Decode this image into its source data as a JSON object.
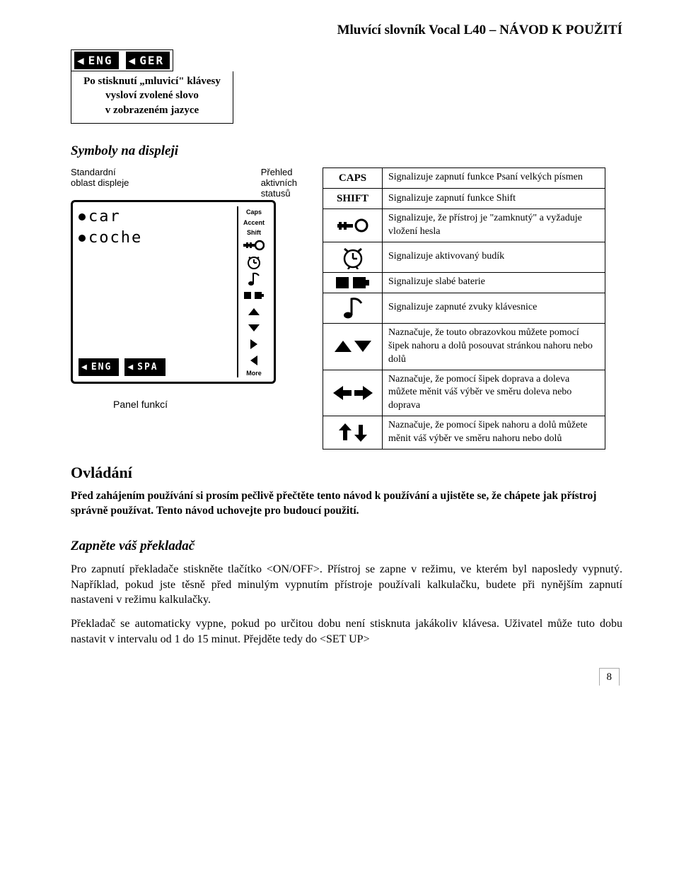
{
  "header": "Mluvící slovník Vocal L40 – NÁVOD K POUŽITÍ",
  "engger": {
    "left": "ENG",
    "right": "GER"
  },
  "caption_box": {
    "l1": "Po stisknutí „mluvicí\" klávesy",
    "l2": "vysloví zvolené slovo",
    "l3": "v zobrazeném jazyce"
  },
  "section_symbols_title": "Symboly na displeji",
  "diagram": {
    "label_std_l1": "Standardní",
    "label_std_l2": "oblast displeje",
    "label_stat_l1": "Přehled",
    "label_stat_l2": "aktivních",
    "label_stat_l3": "statusů",
    "line1": "car",
    "line2": "coche",
    "lang_left": "ENG",
    "lang_right": "SPA",
    "status_labels": {
      "caps": "Caps",
      "accent": "Accent",
      "shift": "Shift",
      "more": "More"
    },
    "panel_caption": "Panel funkcí"
  },
  "symbols": [
    {
      "label": "CAPS",
      "type": "text",
      "desc": "Signalizuje zapnutí funkce Psaní velkých písmen"
    },
    {
      "label": "SHIFT",
      "type": "text",
      "desc": "Signalizuje zapnutí funkce Shift"
    },
    {
      "type": "key",
      "desc": "Signalizuje, že přístroj je \"zamknutý\" a vyžaduje vložení hesla"
    },
    {
      "type": "clock",
      "desc": "Signalizuje aktivovaný budík"
    },
    {
      "type": "battery",
      "desc": "Signalizuje slabé baterie"
    },
    {
      "type": "note",
      "desc": "Signalizuje zapnuté zvuky klávesnice"
    },
    {
      "type": "updown-tri",
      "desc": "Naznačuje, že touto obrazovkou můžete pomocí šipek nahoru a dolů posouvat stránkou nahoru nebo dolů"
    },
    {
      "type": "leftright",
      "desc": "Naznačuje, že pomocí šipek doprava a doleva můžete měnit váš výběr ve směru doleva nebo doprava"
    },
    {
      "type": "updown-arrow",
      "desc": "Naznačuje, že pomocí šipek nahoru a dolů můžete měnit váš výběr ve směru nahoru nebo dolů"
    }
  ],
  "section_control_title": "Ovládání",
  "intro": "Před zahájením používání si prosím pečlivě přečtěte tento návod k používání a ujistěte se, že chápete jak přístroj správně používat. Tento návod uchovejte pro budoucí použití.",
  "section_turn_on_title": "Zapněte váš překladač",
  "body1": "Pro zapnutí překladače stiskněte tlačítko <ON/OFF>. Přístroj se zapne v režimu, ve kterém byl naposledy vypnutý. Například, pokud jste těsně před minulým vypnutím přístroje používali kalkulačku, budete při nynějším zapnutí nastaveni v režimu kalkulačky.",
  "body2": "Překladač se automaticky vypne, pokud po určitou dobu není stisknuta jakákoliv klávesa. Uživatel může tuto dobu nastavit v intervalu od 1 do 15 minut. Přejděte tedy do <SET UP>",
  "page_number": "8",
  "colors": {
    "text": "#000000",
    "bg": "#ffffff"
  }
}
